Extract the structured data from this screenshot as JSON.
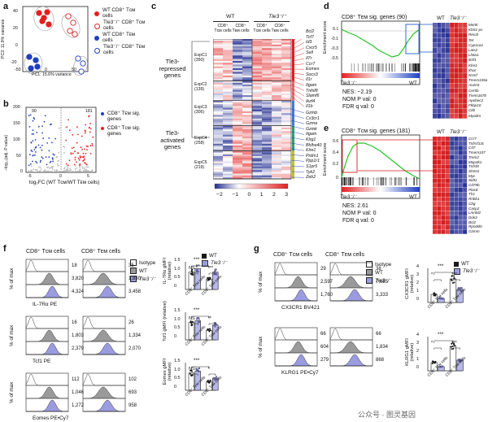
{
  "panel_labels": {
    "a": "a",
    "b": "b",
    "c": "c",
    "d": "d",
    "e": "e",
    "f": "f",
    "g": "g"
  },
  "pca": {
    "xlabel": "PC1: 15.6% variance",
    "ylabel": "PC2: 11.9% variance",
    "xticks": [
      "-50",
      "0",
      "50"
    ],
    "yticks": [
      "40",
      "20",
      "0",
      "-20"
    ],
    "legend": [
      {
        "label": "WT CD8⁺ Tᴄᴍ cells",
        "color": "#e02020",
        "fill": true
      },
      {
        "label": "Tle3⁻/⁻ CD8⁺ Tᴄᴍ cells",
        "color": "#e02020",
        "fill": false
      },
      {
        "label": "WT CD8⁺ Tᴇᴍ cells",
        "color": "#1f3fbf",
        "fill": true
      },
      {
        "label": "Tle3⁻/⁻ CD8⁺ Tᴇᴍ cells",
        "color": "#1f3fbf",
        "fill": false
      }
    ]
  },
  "volcano": {
    "xlabel": "log₂FC (WT Tᴄᴍ/WT Tᴇᴍ cells)",
    "ylabel": "–log₁₀(adj. P value)",
    "count_left": "90",
    "count_right": "181",
    "xticks": [
      "-5",
      "0",
      "5"
    ],
    "yticks": [
      "200",
      "150",
      "100",
      "50",
      "0"
    ],
    "legend": [
      {
        "label": "CD8⁺ Tᴇᴍ sig. genes",
        "color": "#1f3fbf"
      },
      {
        "label": "CD8⁺ Tᴄᴍ sig. genes",
        "color": "#e02020"
      }
    ]
  },
  "heatmap_c": {
    "col_group_wt": "WT",
    "col_group_ko": "Tle3⁻/⁻",
    "col_labels": [
      "CD8⁺ Tᴄᴍ cells",
      "CD8⁺ Tᴇᴍ cells",
      "CD8⁺ Tᴄᴍ cells",
      "CD8⁺ Tᴇᴍ cells"
    ],
    "group_repressed": "Tle3-repressed genes",
    "group_activated": "Tle3-activated genes",
    "clusters": [
      "ExpC1 (350)",
      "ExpC2 (139)",
      "ExpC3 (306)",
      "ExpC4 (258)",
      "ExpC5 (219)"
    ],
    "colorbar_ticks": [
      "−2",
      "−1",
      "0",
      "1",
      "2",
      "3"
    ],
    "repressed_genes": [
      "Bcl2",
      "Tcf7",
      "Id3",
      "Cxcr5",
      "Sell",
      "Il7r",
      "Ccr7",
      "Eomes",
      "Socs3",
      "Il1r",
      "Itgam",
      "Tnfsf8",
      "Slamf6",
      "Ikzf4",
      "Il1b"
    ],
    "activated_genes": [
      "Gzmb",
      "Cx3cr1",
      "Gzma",
      "Gzmk",
      "Itgam",
      "Klrg1",
      "Bhlhe40",
      "Klre1",
      "Prdm1",
      "Ppp1r1",
      "S1pr5",
      "Tyk2",
      "Zeb2"
    ]
  },
  "gsea_d": {
    "title": "CD8⁺ Tᴇᴍ sig. genes (90)",
    "ylabel": "Enrichment score",
    "yticks": [
      "0.1",
      "-0.1",
      "-0.3",
      "-0.5"
    ],
    "left_label": "Tle3⁻/⁻",
    "right_label": "WT",
    "nes": "NES: −2.19",
    "nom_p": "NOM P val: 0",
    "fdr": "FDR q val: 0",
    "heat_header_wt": "WT",
    "heat_header_ko": "Tle3⁻/⁻",
    "genes": [
      "Mertk",
      "Kbrt1-ps",
      "Rev3l",
      "Tet",
      "Cyp11a1",
      "Lats2",
      "Llt4a1",
      "Ikzf1",
      "Klre1",
      "Ifnar",
      "Nsmf",
      "Tmem155a",
      "Ao2mt",
      "Cer5b",
      "Tnem167b",
      "Apobec2",
      "Fkbp10",
      "Ckb",
      "Myadm"
    ]
  },
  "gsea_e": {
    "title": "CD8⁺ Tᴄᴍ sig. genes (181)",
    "ylabel": "Enrichment score",
    "yticks": [
      "0.6",
      "0.4",
      "0.2",
      "0"
    ],
    "left_label": "Tle3⁻/⁻",
    "right_label": "WT",
    "nes": "NES: 2.61",
    "nom_p": "NOM P val: 0",
    "fdr": "FDR q val: 0",
    "heat_header_wt": "WT",
    "heat_header_ko": "Tle3⁻/⁻",
    "genes": [
      "Ccr7",
      "Tnfrsf13c",
      "Cd7",
      "Tmem107",
      "Trem2",
      "Map4k1",
      "Tnfsf8",
      "Shmt1",
      "Myc",
      "Sidt1",
      "Cd79b",
      "Plac8",
      "Tlr1",
      "Rnbb1",
      "Cbg",
      "Casp2",
      "Lmnbl2",
      "Dok3",
      "Bcl2",
      "Rps6kl0",
      "Gzmm"
    ]
  },
  "flow_f": {
    "col1_title": "CD8⁺ Tᴄᴍ cells",
    "col2_title": "CD8⁺ Tᴇᴍ cells",
    "legend": [
      {
        "label": "Isotype",
        "color": "#ffffff"
      },
      {
        "label": "WT",
        "color": "#9a9a9a"
      },
      {
        "label": "Tle3⁻/⁻",
        "color": "#9b9bdf"
      }
    ],
    "ylabel": "% of max",
    "yticks": [
      "100",
      "50",
      "0"
    ],
    "xticks": [
      "0",
      "10³",
      "10⁴",
      "10⁵"
    ],
    "rows": [
      {
        "marker": "IL-7Rα PE",
        "tcm": [
          "18",
          "3,820",
          "4,324"
        ],
        "tem": [
          "35",
          "1,830",
          "3,458"
        ]
      },
      {
        "marker": "Tcf1 PE",
        "tcm": [
          "16",
          "1,803",
          "2,379"
        ],
        "tem": [
          "26",
          "1,334",
          "2,070"
        ]
      },
      {
        "marker": "Eomes PE•Cy7",
        "tcm": [
          "112",
          "1,046",
          "1,272"
        ],
        "tem": [
          "102",
          "693",
          "958"
        ]
      }
    ]
  },
  "bars_f": {
    "legend": [
      {
        "label": "WT",
        "color": "#1a1a1a"
      },
      {
        "label": "Tle3⁻/⁻",
        "color": "#9b9bdf"
      }
    ],
    "cat_labels": [
      "CD8⁺ Tᴄᴍ cells",
      "CD8⁺ Tᴇᴍ cells"
    ],
    "panels": [
      {
        "ylabel": "IL-7Rα gMFI (relative)",
        "yticks": [
          "1.5",
          "1.0",
          "0.5",
          "0"
        ],
        "ymax": 1.5,
        "values": [
          1.0,
          1.2,
          0.6,
          1.0
        ],
        "sig_top": "***",
        "sig_left": "NS",
        "sig_right": "***"
      },
      {
        "ylabel": "Tcf1 gMFI (relative)",
        "yticks": [
          "1.5",
          "1.0",
          "0.5",
          "0"
        ],
        "ymax": 1.5,
        "values": [
          1.0,
          1.1,
          0.55,
          0.85
        ],
        "sig_top": "***",
        "sig_left": "NS",
        "sig_right": "**"
      },
      {
        "ylabel": "Eomes gMFI (relative)",
        "yticks": [
          "1.5",
          "1.0",
          "0.5",
          "0"
        ],
        "ymax": 1.5,
        "values": [
          1.0,
          1.1,
          0.5,
          0.7
        ],
        "sig_top": "***",
        "sig_left": "NS",
        "sig_right": "*"
      }
    ]
  },
  "flow_g": {
    "col1_title": "CD8⁺ Tᴄᴍ cells",
    "col2_title": "CD8⁺ Tᴇᴍ cells",
    "legend": [
      {
        "label": "Isotype",
        "color": "#ffffff"
      },
      {
        "label": "WT",
        "color": "#9a9a9a"
      },
      {
        "label": "Tle3⁻/⁻",
        "color": "#9b9bdf"
      }
    ],
    "ylabel": "% of max",
    "rows": [
      {
        "marker": "CX3CR1 BV421",
        "tcm": [
          "29",
          "2,597",
          "1,760"
        ],
        "tem": [
          "38",
          "7,685",
          "3,333"
        ]
      },
      {
        "marker": "KLRG1 PE•Cy7",
        "tcm": [
          "66",
          "604",
          "279"
        ],
        "tem": [
          "66",
          "1,834",
          "868"
        ]
      }
    ]
  },
  "bars_g": {
    "legend": [
      {
        "label": "WT",
        "color": "#1a1a1a"
      },
      {
        "label": "Tle3⁻/⁻",
        "color": "#9b9bdf"
      }
    ],
    "cat_labels": [
      "CD8⁺ Tᴄᴍ cells",
      "CD8⁺ Tᴇᴍ cells"
    ],
    "panels": [
      {
        "ylabel": "CX3CR1 gMFI (relative)",
        "yticks": [
          "4",
          "3",
          "2",
          "1",
          "0"
        ],
        "ymax": 4,
        "values": [
          1.0,
          0.5,
          2.9,
          1.6
        ],
        "sig_top": "***",
        "sig_left": "*",
        "sig_right": "***"
      },
      {
        "ylabel": "KLRG1 gMFI (relative)",
        "yticks": [
          "4",
          "3",
          "2",
          "1",
          "0"
        ],
        "ymax": 4,
        "values": [
          1.0,
          0.5,
          3.0,
          1.3
        ],
        "sig_top": "***",
        "sig_left": "*",
        "sig_right": "***"
      }
    ]
  },
  "watermark": "公众号 · 图灵基因"
}
